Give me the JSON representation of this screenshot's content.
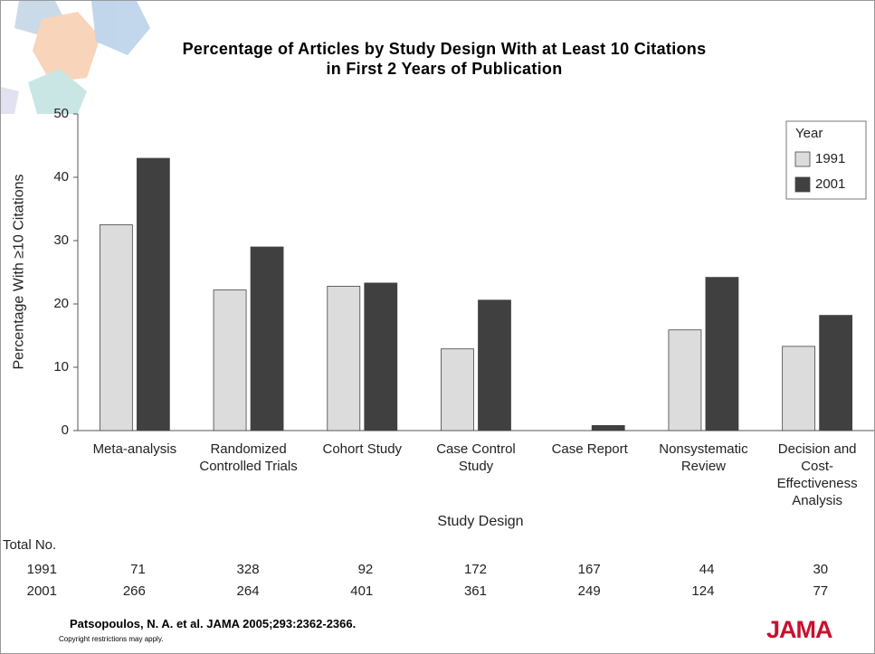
{
  "chart_data": {
    "type": "bar",
    "title": "Percentage of Articles by Study Design With at Least 10 Citations in First 2 Years of Publication",
    "x_label": "Study Design",
    "y_label": "Percentage With ≥10 Citations",
    "categories": [
      "Meta-analysis",
      "Randomized Controlled Trials",
      "Cohort Study",
      "Case Control Study",
      "Case Report",
      "Nonsystematic Review",
      "Decision and Cost-Effectiveness Analysis"
    ],
    "series": [
      {
        "name": "1991",
        "color": "#dcdcdc",
        "values": [
          32.5,
          22.2,
          22.8,
          12.9,
          0,
          15.9,
          13.3
        ]
      },
      {
        "name": "2001",
        "color": "#404040",
        "values": [
          43,
          29,
          23.3,
          20.6,
          0.8,
          24.2,
          18.2
        ]
      }
    ],
    "legend_title": "Year",
    "legend_position": "upper right",
    "ylim": [
      0,
      50
    ],
    "yticks": [
      0,
      10,
      20,
      30,
      40,
      50
    ],
    "grid": false,
    "totals": {
      "label": "Total No.",
      "rows": [
        {
          "name": "1991",
          "values": [
            71,
            328,
            92,
            172,
            167,
            44,
            30
          ]
        },
        {
          "name": "2001",
          "values": [
            266,
            264,
            401,
            361,
            249,
            124,
            77
          ]
        }
      ]
    }
  },
  "footer": {
    "citation": "Patsopoulos, N. A. et al. JAMA 2005;293:2362-2366.",
    "copyright": "Copyright restrictions may apply.",
    "logo": "JAMA"
  }
}
